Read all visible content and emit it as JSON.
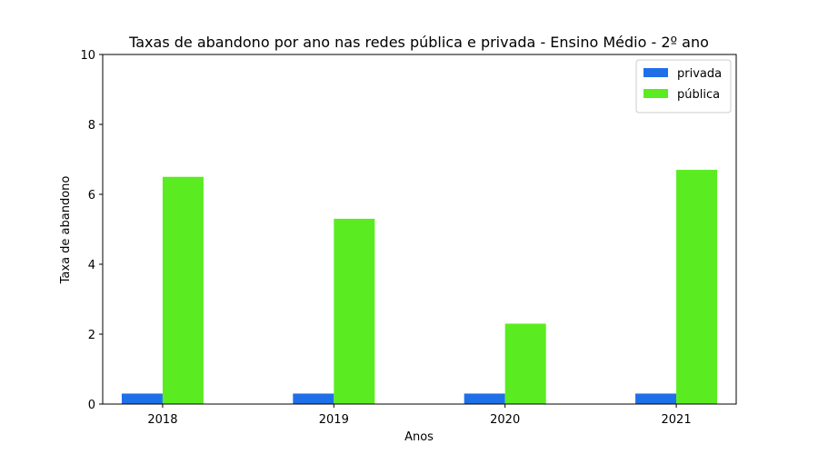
{
  "chart_data": {
    "type": "bar",
    "title": "Taxas de abandono por ano nas redes pública e privada - Ensino Médio - 2º ano",
    "xlabel": "Anos",
    "ylabel": "Taxa de abandono",
    "categories": [
      "2018",
      "2019",
      "2020",
      "2021"
    ],
    "ylim": [
      0,
      10
    ],
    "yticks": [
      0,
      2,
      4,
      6,
      8,
      10
    ],
    "grid": false,
    "legend_position": "top-right",
    "series": [
      {
        "name": "privada",
        "color": "#1f6fe8",
        "values": [
          0.3,
          0.3,
          0.3,
          0.3
        ]
      },
      {
        "name": "pública",
        "color": "#5aec21",
        "values": [
          6.5,
          5.3,
          2.3,
          6.7
        ]
      }
    ]
  }
}
